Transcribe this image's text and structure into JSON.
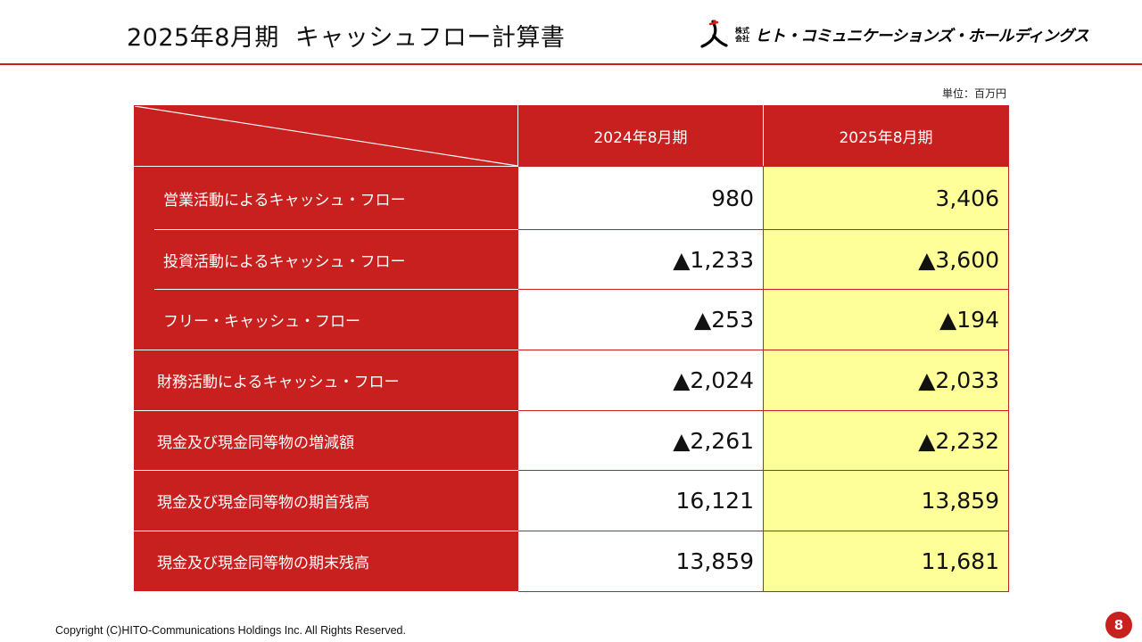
{
  "header": {
    "title_period": "2025年8月期",
    "title_main": "キャッシュフロー計算書",
    "logo_small_text": "株式会社",
    "company_name": "ヒト・コミュニケーションズ・ホールディングス"
  },
  "unit_label": "単位：百万円",
  "table": {
    "columns": [
      "2024年8月期",
      "2025年8月期"
    ],
    "rows": [
      {
        "label": "営業活動によるキャッシュ・フロー",
        "prev": "980",
        "curr": "3,406"
      },
      {
        "label": "投資活動によるキャッシュ・フロー",
        "prev": "▲1,233",
        "curr": "▲3,600"
      },
      {
        "label": "フリー・キャッシュ・フロー",
        "prev": "▲253",
        "curr": "▲194"
      },
      {
        "label": "財務活動によるキャッシュ・フロー",
        "prev": "▲2,024",
        "curr": "▲2,033"
      },
      {
        "label": "現金及び現金同等物の増減額",
        "prev": "▲2,261",
        "curr": "▲2,232"
      },
      {
        "label": "現金及び現金同等物の期首残高",
        "prev": "16,121",
        "curr": "13,859"
      },
      {
        "label": "現金及び現金同等物の期末残高",
        "prev": "13,859",
        "curr": "11,681"
      }
    ]
  },
  "footer": {
    "copyright": "Copyright (C)HITO-Communications Holdings Inc. All Rights Reserved.",
    "page_number": "8"
  },
  "colors": {
    "accent": "#c8201e",
    "highlight": "#ffff99"
  }
}
